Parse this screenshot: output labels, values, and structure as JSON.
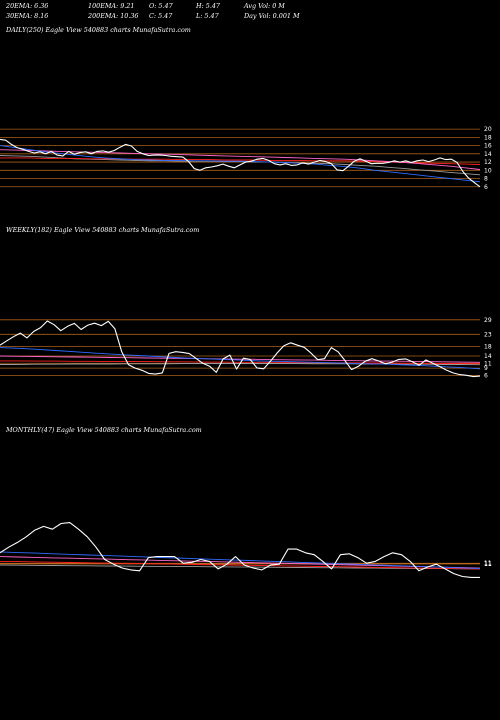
{
  "header": {
    "row1": [
      {
        "id": "ema20",
        "text": "20EMA: 6.36"
      },
      {
        "id": "ema100",
        "text": "100EMA: 9.21"
      },
      {
        "id": "open",
        "text": "O: 5.47"
      },
      {
        "id": "high",
        "text": "H: 5.47"
      },
      {
        "id": "avgvol",
        "text": "Avg Vol: 0  M"
      }
    ],
    "row2": [
      {
        "id": "ema30",
        "text": "30EMA: 8.16"
      },
      {
        "id": "ema200",
        "text": "200EMA: 10.36"
      },
      {
        "id": "close",
        "text": "C: 5.47"
      },
      {
        "id": "low",
        "text": "L: 5.47"
      },
      {
        "id": "dayvol",
        "text": "Day Vol: 0.001 M"
      }
    ]
  },
  "colors": {
    "price": "#ffffff",
    "ema_blue": "#2f6bff",
    "ema_pink": "#ff66cc",
    "ema_red": "#ff2020",
    "ema_gray": "#9a9a9a",
    "level": "#c87020"
  },
  "chart_data": [
    {
      "id": "daily",
      "type": "line",
      "title": "DAILY(250) Eagle  View  540883 charts MunafaSutra.com",
      "tick_labels": [
        "20",
        "18",
        "16",
        "14",
        "12",
        "10",
        "8",
        "6"
      ],
      "levels": [
        20,
        18,
        16,
        14,
        12,
        10,
        8,
        6
      ],
      "ylim": [
        4,
        21
      ],
      "series": [
        {
          "role": "price",
          "values": [
            17.5,
            17.3,
            16.3,
            15.5,
            15.1,
            14.6,
            14.2,
            14.5,
            14.0,
            14.6,
            13.7,
            13.5,
            14.6,
            13.9,
            14.3,
            14.5,
            14.0,
            14.6,
            14.7,
            14.4,
            14.8,
            15.6,
            16.3,
            15.9,
            14.6,
            14.0,
            13.6,
            13.7,
            13.7,
            13.6,
            13.4,
            13.3,
            13.2,
            12.1,
            10.4,
            10.0,
            10.6,
            10.8,
            11.1,
            11.5,
            11.0,
            10.6,
            11.3,
            12.0,
            12.2,
            12.7,
            12.9,
            12.4,
            11.6,
            11.3,
            11.6,
            11.2,
            11.3,
            11.8,
            11.5,
            12.0,
            12.4,
            12.1,
            11.6,
            10.1,
            9.9,
            11.0,
            12.2,
            12.8,
            12.2,
            11.6,
            11.7,
            11.7,
            11.9,
            12.3,
            12.0,
            12.3,
            11.9,
            12.3,
            12.5,
            12.1,
            12.5,
            13.0,
            12.6,
            12.7,
            11.9,
            9.7,
            8.1,
            7.0,
            6.0
          ]
        },
        {
          "role": "ema_blue",
          "values": [
            16.0,
            15.5,
            15.0,
            14.5,
            14.1,
            13.7,
            13.3,
            13.0,
            12.8,
            12.6,
            12.5,
            12.4,
            12.4,
            12.3,
            12.3,
            12.2,
            12.2,
            12.1,
            12.0,
            11.9,
            11.7,
            11.5,
            11.2,
            10.9,
            10.5,
            10.0,
            9.6,
            9.2,
            8.8,
            8.4,
            8.0,
            7.6,
            7.2
          ]
        },
        {
          "role": "ema_pink",
          "values": [
            15.0,
            14.9,
            14.8,
            14.7,
            14.6,
            14.5,
            14.4,
            14.3,
            14.2,
            14.1,
            14.0,
            13.9,
            13.8,
            13.7,
            13.6,
            13.5,
            13.4,
            13.3,
            13.2,
            13.1,
            13.0,
            12.9,
            12.8,
            12.7,
            12.5,
            12.3,
            12.1,
            11.9,
            11.6,
            11.3,
            11.0,
            10.6,
            10.2
          ]
        },
        {
          "role": "ema_red",
          "values": [
            13.0,
            13.0,
            13.0,
            12.9,
            12.9,
            12.9,
            12.8,
            12.8,
            12.8,
            12.7,
            12.7,
            12.7,
            12.6,
            12.6,
            12.6,
            12.5,
            12.5,
            12.5,
            12.4,
            12.4,
            12.4,
            12.3,
            12.3,
            12.3,
            12.2,
            12.1,
            12.0,
            11.9,
            11.8,
            11.7,
            11.6,
            11.5,
            11.4
          ]
        },
        {
          "role": "ema_gray",
          "values": [
            13.6,
            13.5,
            13.4,
            13.2,
            13.0,
            12.8,
            12.7,
            12.6,
            12.5,
            12.4,
            12.3,
            12.3,
            12.2,
            12.2,
            12.2,
            12.1,
            12.1,
            12.0,
            12.0,
            11.9,
            11.8,
            11.7,
            11.6,
            11.4,
            11.2,
            11.0,
            10.7,
            10.4,
            10.1,
            9.8,
            9.5,
            9.2,
            8.9
          ]
        }
      ]
    },
    {
      "id": "weekly",
      "type": "line",
      "title": "WEEKLY(182) Eagle  View  540883 charts MunafaSutra.com",
      "tick_labels": [
        "29",
        "23",
        "18",
        "14",
        "11",
        "9",
        "6"
      ],
      "levels": [
        29,
        23,
        18,
        14,
        11,
        9,
        6
      ],
      "ylim": [
        2,
        31
      ],
      "series": [
        {
          "role": "price",
          "values": [
            18.5,
            20.3,
            22.0,
            23.5,
            21.5,
            24.2,
            25.8,
            28.5,
            27.0,
            24.5,
            26.3,
            27.5,
            25.0,
            26.8,
            27.6,
            26.6,
            28.4,
            25.3,
            15.8,
            10.4,
            9.0,
            8.1,
            6.8,
            6.5,
            7.0,
            15.1,
            15.8,
            15.5,
            15.0,
            13.0,
            11.0,
            9.8,
            7.2,
            12.8,
            14.4,
            8.6,
            13.1,
            12.6,
            9.1,
            8.7,
            11.8,
            15.3,
            18.3,
            19.5,
            18.5,
            17.6,
            15.2,
            12.5,
            12.9,
            17.5,
            15.8,
            12.2,
            8.4,
            9.7,
            11.8,
            12.9,
            12.0,
            10.8,
            11.5,
            12.6,
            12.8,
            11.6,
            10.2,
            12.4,
            11.0,
            9.7,
            8.2,
            7.0,
            6.3,
            6.0,
            5.5,
            5.7
          ]
        },
        {
          "role": "ema_blue",
          "values": [
            17.5,
            17.2,
            16.8,
            16.3,
            15.8,
            15.3,
            14.8,
            14.4,
            14.0,
            13.6,
            13.2,
            12.9,
            12.6,
            12.3,
            12.0,
            11.8,
            11.6,
            11.4,
            11.2,
            11.0,
            10.8,
            10.6,
            10.3,
            10.0,
            9.6,
            9.2,
            8.7
          ]
        },
        {
          "role": "ema_pink",
          "values": [
            14.0,
            13.9,
            13.8,
            13.7,
            13.6,
            13.5,
            13.4,
            13.3,
            13.2,
            13.1,
            13.0,
            12.9,
            12.8,
            12.7,
            12.6,
            12.5,
            12.4,
            12.3,
            12.2,
            12.1,
            12.0,
            11.9,
            11.8,
            11.7,
            11.6,
            11.5,
            11.4
          ]
        },
        {
          "role": "ema_red",
          "values": [
            12.0,
            12.0,
            11.9,
            11.9,
            11.8,
            11.8,
            11.7,
            11.7,
            11.7,
            11.6,
            11.6,
            11.5,
            11.5,
            11.4,
            11.4,
            11.4,
            11.3,
            11.3,
            11.2,
            11.2,
            11.1,
            11.1,
            11.0,
            11.0,
            10.9,
            10.9,
            10.8
          ]
        },
        {
          "role": "ema_gray",
          "values": [
            10.5,
            10.5,
            10.6,
            10.6,
            10.7,
            10.7,
            10.7,
            10.8,
            10.8,
            10.8,
            10.9,
            10.9,
            10.9,
            10.9,
            10.9,
            10.9,
            10.9,
            10.8,
            10.8,
            10.8,
            10.7,
            10.7,
            10.6,
            10.6,
            10.5,
            10.5,
            10.4
          ]
        }
      ]
    },
    {
      "id": "monthly",
      "type": "line",
      "title": "MONTHLY(47) Eagle  View  540883 charts MunafaSutra.com",
      "tick_labels": [
        "11",
        "11",
        "11"
      ],
      "levels": [
        11,
        10.6,
        10.2
      ],
      "ylim": [
        -12,
        62
      ],
      "series": [
        {
          "role": "price",
          "values": [
            22,
            28,
            33,
            39,
            46,
            50,
            47,
            53,
            54,
            47,
            39,
            28,
            15,
            10,
            6,
            4,
            3,
            17,
            18,
            18,
            18,
            11,
            12,
            15,
            13,
            5,
            10,
            18,
            9,
            6,
            4,
            9,
            10,
            26,
            26,
            22,
            20,
            13,
            5,
            20,
            21,
            17,
            11,
            13,
            18,
            22,
            20,
            13,
            3,
            7,
            10,
            5,
            0,
            -3,
            -4,
            -4
          ]
        },
        {
          "role": "ema_blue",
          "values": [
            23.0,
            22.3,
            21.7,
            21.0,
            20.4,
            19.7,
            19.1,
            18.4,
            17.8,
            17.1,
            16.5,
            15.8,
            15.2,
            14.5,
            13.9,
            13.2,
            12.6,
            11.9,
            11.3,
            10.6,
            10.0,
            9.3,
            8.7,
            8.0,
            7.4,
            6.7,
            6.1,
            5.4
          ]
        },
        {
          "role": "ema_pink",
          "values": [
            18,
            17.6,
            17.2,
            16.7,
            16.3,
            15.8,
            15.4,
            14.9,
            14.5,
            14,
            13.6,
            13.1,
            12.7,
            12.2,
            11.8,
            11.3,
            10.9,
            10.4,
            10,
            9.5,
            9.1,
            8.6,
            8.2,
            7.7,
            7.3,
            6.8,
            6.4,
            5.9
          ]
        },
        {
          "role": "ema_red",
          "values": [
            13,
            12.7,
            12.4,
            12.1,
            11.8,
            11.5,
            11.2,
            10.9,
            10.6,
            10.3,
            10,
            9.7,
            9.4,
            9.1,
            8.8,
            8.5,
            8.2,
            7.9,
            7.6,
            7.3,
            7,
            6.7,
            6.4,
            6.1,
            5.8,
            5.5,
            5.2,
            4.9
          ]
        },
        {
          "role": "ema_gray",
          "values": [
            9,
            8.9,
            8.7,
            8.6,
            8.4,
            8.3,
            8.1,
            8,
            7.8,
            7.7,
            7.5,
            7.4,
            7.2,
            7.1,
            6.9,
            6.8,
            6.6,
            6.5,
            6.3,
            6.2,
            6,
            5.9,
            5.7,
            5.6,
            5.4,
            5.3,
            5.1,
            5
          ]
        }
      ]
    }
  ]
}
